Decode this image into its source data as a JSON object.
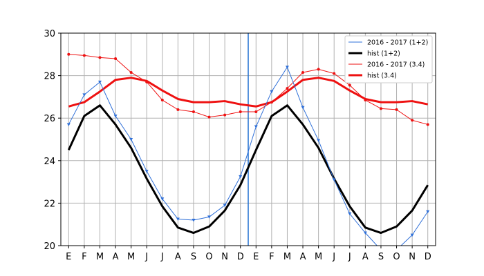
{
  "chart_data": {
    "type": "line",
    "title": "",
    "xlabel": "",
    "ylabel": "",
    "ylim": [
      20,
      30
    ],
    "yticks": [
      "20",
      "22",
      "24",
      "26",
      "28",
      "30"
    ],
    "categories": [
      "E",
      "F",
      "M",
      "A",
      "M",
      "J",
      "J",
      "A",
      "S",
      "O",
      "N",
      "D",
      "E",
      "F",
      "M",
      "A",
      "M",
      "J",
      "J",
      "A",
      "S",
      "O",
      "N",
      "D"
    ],
    "grid": true,
    "legend_position": "top-right",
    "marker_line_after_index": 11,
    "marker_line_color": "#1f6fd0",
    "series": [
      {
        "name": "2016 - 2017 (1+2)",
        "color": "#2e6fd8",
        "style": "thin-triangle",
        "values": [
          25.7,
          27.1,
          27.7,
          26.1,
          25.0,
          23.5,
          22.2,
          21.25,
          21.2,
          21.35,
          21.9,
          23.25,
          25.6,
          27.25,
          28.4,
          26.5,
          24.95,
          23.1,
          21.5,
          20.6,
          19.8,
          19.8,
          20.5,
          21.6
        ]
      },
      {
        "name": "hist (1+2)",
        "color": "#000000",
        "style": "thick",
        "values": [
          24.5,
          26.1,
          26.6,
          25.7,
          24.6,
          23.15,
          21.85,
          20.85,
          20.6,
          20.9,
          21.65,
          22.85,
          24.5,
          26.1,
          26.6,
          25.7,
          24.6,
          23.15,
          21.85,
          20.85,
          20.6,
          20.9,
          21.65,
          22.85
        ]
      },
      {
        "name": "2016 - 2017 (3.4)",
        "color": "#ee1111",
        "style": "thin-dot",
        "values": [
          29.0,
          28.95,
          28.85,
          28.8,
          28.15,
          27.7,
          26.85,
          26.4,
          26.3,
          26.05,
          26.15,
          26.3,
          26.3,
          26.75,
          27.4,
          28.15,
          28.3,
          28.1,
          27.55,
          26.85,
          26.45,
          26.4,
          25.9,
          25.7
        ]
      },
      {
        "name": "hist (3.4)",
        "color": "#ee1111",
        "style": "thick",
        "values": [
          26.55,
          26.75,
          27.25,
          27.8,
          27.9,
          27.75,
          27.3,
          26.9,
          26.75,
          26.75,
          26.8,
          26.65,
          26.55,
          26.75,
          27.25,
          27.8,
          27.9,
          27.75,
          27.3,
          26.9,
          26.75,
          26.75,
          26.8,
          26.65
        ]
      }
    ]
  }
}
